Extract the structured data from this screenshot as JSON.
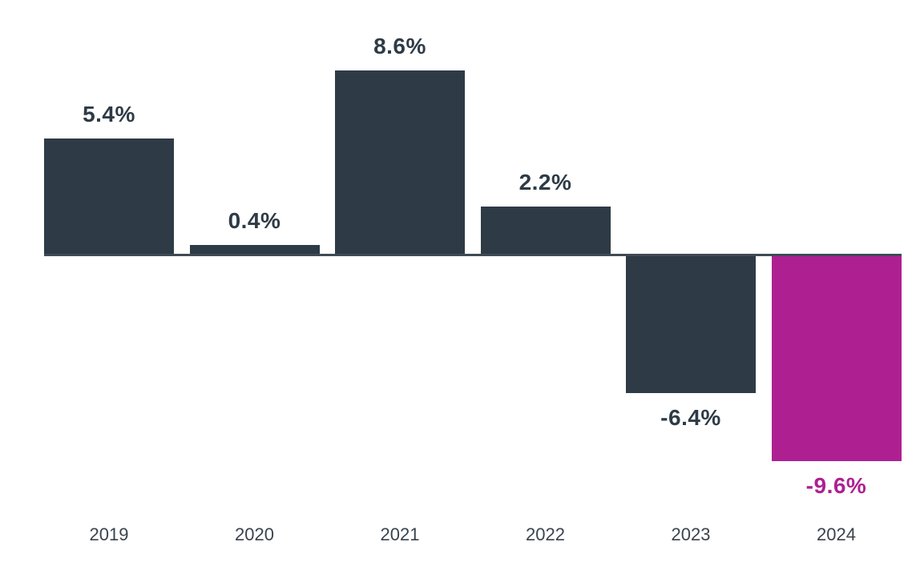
{
  "chart_data": {
    "type": "bar",
    "categories": [
      "2019",
      "2020",
      "2021",
      "2022",
      "2023",
      "2024"
    ],
    "values": [
      5.4,
      0.4,
      8.6,
      2.2,
      -6.4,
      -9.6
    ],
    "value_labels": [
      "5.4%",
      "0.4%",
      "8.6%",
      "2.2%",
      "-6.4%",
      "-9.6%"
    ],
    "title": "",
    "xlabel": "",
    "ylabel": "",
    "ylim": [
      -10.5,
      9.5
    ],
    "grid": false,
    "legend": null,
    "baseline": 0,
    "highlight_category": "2024",
    "colors": {
      "bar_default": "#2e3b46",
      "bar_highlight": "#ae2092",
      "value_label_default": "#2e3b46",
      "value_label_highlight": "#ae2092",
      "tick_label": "#3a444e",
      "axis_line": "#3f4a54",
      "background": "#ffffff"
    }
  }
}
